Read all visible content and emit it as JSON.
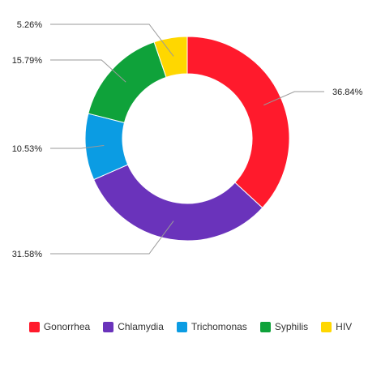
{
  "chart_data": {
    "type": "pie",
    "donut": true,
    "title": "",
    "categories": [
      "Gonorrhea",
      "Chlamydia",
      "Trichomonas",
      "Syphilis",
      "HIV"
    ],
    "values": [
      36.84,
      31.58,
      10.53,
      15.79,
      5.26
    ],
    "labels": [
      "36.84%",
      "31.58%",
      "10.53%",
      "15.79%",
      "5.26%"
    ],
    "colors": [
      "#ff1a2c",
      "#6a33bb",
      "#0b9ce3",
      "#0fa23a",
      "#ffd700"
    ],
    "legend_position": "bottom"
  }
}
